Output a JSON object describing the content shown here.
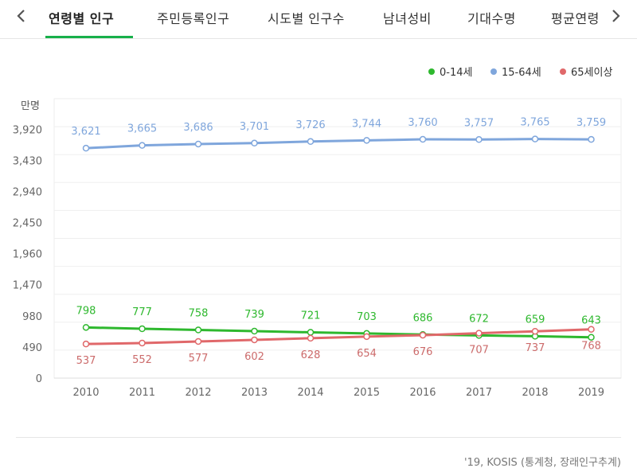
{
  "tabs": [
    {
      "label": "연령별 인구",
      "active": true
    },
    {
      "label": "주민등록인구",
      "active": false
    },
    {
      "label": "시도별 인구수",
      "active": false
    },
    {
      "label": "남녀성비",
      "active": false
    },
    {
      "label": "기대수명",
      "active": false
    },
    {
      "label": "평균연령",
      "active": false
    }
  ],
  "nav": {
    "prev_icon": "chevron-left-icon",
    "next_icon": "chevron-right-icon"
  },
  "chart_data": {
    "type": "line",
    "ylabel": "만명",
    "categories": [
      "2010",
      "2011",
      "2012",
      "2013",
      "2014",
      "2015",
      "2016",
      "2017",
      "2018",
      "2019"
    ],
    "yticks": [
      "0",
      "490",
      "980",
      "1,470",
      "1,960",
      "2,450",
      "2,940",
      "3,430",
      "3,920"
    ],
    "ylim": [
      0,
      4400
    ],
    "grid": true,
    "legend_position": "top-right",
    "series": [
      {
        "name": "0-14세",
        "color": "#2eb82e",
        "label_color": "#2eb82e",
        "label_position": "above",
        "values": [
          798,
          777,
          758,
          739,
          721,
          703,
          686,
          672,
          659,
          643
        ],
        "labels": [
          "798",
          "777",
          "758",
          "739",
          "721",
          "703",
          "686",
          "672",
          "659",
          "643"
        ]
      },
      {
        "name": "15-64세",
        "color": "#7fa6dc",
        "label_color": "#7fa6dc",
        "label_position": "above",
        "values": [
          3621,
          3665,
          3686,
          3701,
          3726,
          3744,
          3760,
          3757,
          3765,
          3759
        ],
        "labels": [
          "3,621",
          "3,665",
          "3,686",
          "3,701",
          "3,726",
          "3,744",
          "3,760",
          "3,757",
          "3,765",
          "3,759"
        ]
      },
      {
        "name": "65세이상",
        "color": "#e0686a",
        "label_color": "#cc6b6b",
        "label_position": "below",
        "values": [
          537,
          552,
          577,
          602,
          628,
          654,
          676,
          707,
          737,
          768
        ],
        "labels": [
          "537",
          "552",
          "577",
          "602",
          "628",
          "654",
          "676",
          "707",
          "737",
          "768"
        ]
      }
    ]
  },
  "source": "'19, KOSIS (통계청, 장래인구추계)"
}
